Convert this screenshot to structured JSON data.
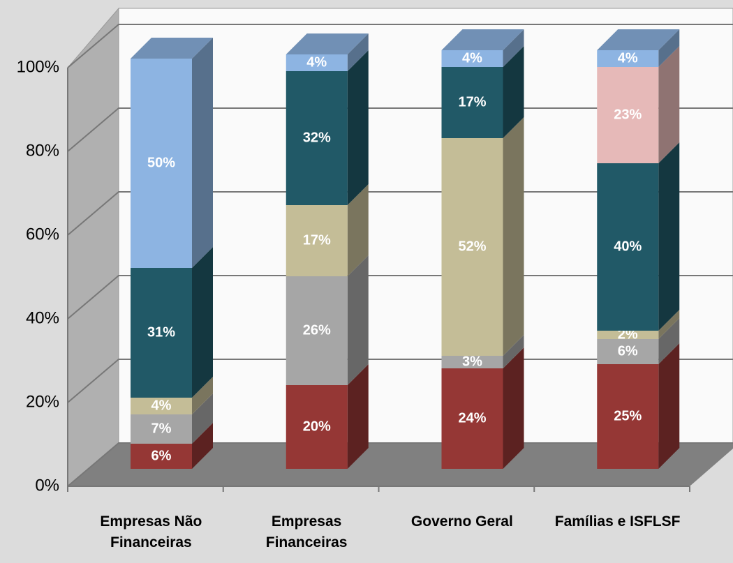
{
  "chart_data": {
    "type": "bar",
    "stacked": true,
    "categories": [
      "Empresas Não Financeiras",
      "Empresas Financeiras",
      "Governo Geral",
      "Famílias e ISFLSF"
    ],
    "series": [
      {
        "color": "#953735",
        "values": [
          6,
          20,
          24,
          25
        ],
        "value_labels": [
          "6%",
          "20%",
          "24%",
          "25%"
        ]
      },
      {
        "color": "#a6a6a6",
        "values": [
          7,
          26,
          3,
          6
        ],
        "value_labels": [
          "7%",
          "26%",
          "3%",
          "6%"
        ]
      },
      {
        "color": "#c4bd97",
        "values": [
          4,
          17,
          52,
          2
        ],
        "value_labels": [
          "4%",
          "17%",
          "52%",
          "2%"
        ]
      },
      {
        "color": "#215967",
        "values": [
          31,
          32,
          17,
          40
        ],
        "value_labels": [
          "31%",
          "32%",
          "17%",
          "40%"
        ]
      },
      {
        "color": "#e6b9b8",
        "values": [
          null,
          null,
          null,
          23
        ],
        "value_labels": [
          null,
          null,
          null,
          "23%"
        ]
      },
      {
        "color": "#8db4e2",
        "values": [
          50,
          4,
          4,
          4
        ],
        "value_labels": [
          "50%",
          "4%",
          "4%",
          "4%"
        ]
      }
    ],
    "ylim": [
      0,
      100
    ],
    "yticks": [
      {
        "value": 0,
        "label": "0%"
      },
      {
        "value": 20,
        "label": "20%"
      },
      {
        "value": 40,
        "label": "40%"
      },
      {
        "value": 60,
        "label": "60%"
      },
      {
        "value": 80,
        "label": "80%"
      },
      {
        "value": 100,
        "label": "100%"
      }
    ],
    "grid": true
  }
}
